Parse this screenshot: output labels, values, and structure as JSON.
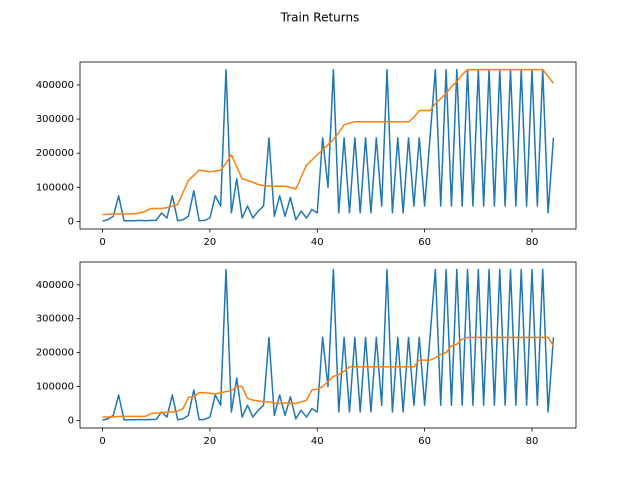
{
  "title": "Train Returns",
  "chart_data": [
    {
      "type": "line",
      "x": [
        0,
        1,
        2,
        3,
        4,
        5,
        6,
        7,
        8,
        9,
        10,
        11,
        12,
        13,
        14,
        15,
        16,
        17,
        18,
        19,
        20,
        21,
        22,
        23,
        24,
        25,
        26,
        27,
        28,
        29,
        30,
        31,
        32,
        33,
        34,
        35,
        36,
        37,
        38,
        39,
        40,
        41,
        42,
        43,
        44,
        45,
        46,
        47,
        48,
        49,
        50,
        51,
        52,
        53,
        54,
        55,
        56,
        57,
        58,
        59,
        60,
        61,
        62,
        63,
        64,
        65,
        66,
        67,
        68,
        69,
        70,
        71,
        72,
        73,
        74,
        75,
        76,
        77,
        78,
        79,
        80,
        81,
        82,
        83,
        84
      ],
      "series": [
        {
          "color": "#1f77b4",
          "values": [
            1000,
            5000,
            15000,
            75000,
            2000,
            2000,
            2000,
            3000,
            2000,
            3000,
            3000,
            25000,
            10000,
            75000,
            2000,
            5000,
            15000,
            90000,
            2000,
            3000,
            10000,
            75000,
            45000,
            445000,
            25000,
            125000,
            10000,
            45000,
            10000,
            30000,
            45000,
            245000,
            15000,
            75000,
            15000,
            70000,
            5000,
            30000,
            10000,
            35000,
            25000,
            245000,
            100000,
            445000,
            25000,
            245000,
            25000,
            245000,
            25000,
            245000,
            25000,
            245000,
            45000,
            445000,
            25000,
            245000,
            25000,
            245000,
            45000,
            245000,
            45000,
            245000,
            445000,
            45000,
            445000,
            45000,
            445000,
            45000,
            445000,
            45000,
            445000,
            45000,
            445000,
            45000,
            445000,
            45000,
            445000,
            45000,
            445000,
            45000,
            445000,
            45000,
            445000,
            25000,
            245000
          ]
        },
        {
          "color": "#ff7f0e",
          "values": [
            20000,
            21000,
            22000,
            22000,
            22000,
            22000,
            22000,
            25000,
            30000,
            38000,
            38000,
            38000,
            40000,
            45000,
            50000,
            85000,
            120000,
            135000,
            150000,
            148000,
            145000,
            148000,
            150000,
            170000,
            195000,
            160000,
            125000,
            120000,
            115000,
            108000,
            105000,
            104000,
            103000,
            103000,
            103000,
            100000,
            95000,
            130000,
            165000,
            180000,
            195000,
            210000,
            225000,
            240000,
            260000,
            283000,
            288000,
            292000,
            292000,
            292000,
            292000,
            292000,
            292000,
            292000,
            292000,
            292000,
            292000,
            292000,
            305000,
            325000,
            325000,
            325000,
            345000,
            360000,
            375000,
            395000,
            410000,
            430000,
            445000,
            445000,
            445000,
            445000,
            445000,
            445000,
            445000,
            445000,
            445000,
            445000,
            445000,
            445000,
            445000,
            445000,
            445000,
            425000,
            405000
          ]
        }
      ],
      "xlim": [
        -4.2,
        88.2
      ],
      "xticks": [
        0,
        20,
        40,
        60,
        80
      ],
      "ylim": [
        -22250,
        467250
      ],
      "yticks": [
        0,
        100000,
        200000,
        300000,
        400000
      ]
    },
    {
      "type": "line",
      "x": [
        0,
        1,
        2,
        3,
        4,
        5,
        6,
        7,
        8,
        9,
        10,
        11,
        12,
        13,
        14,
        15,
        16,
        17,
        18,
        19,
        20,
        21,
        22,
        23,
        24,
        25,
        26,
        27,
        28,
        29,
        30,
        31,
        32,
        33,
        34,
        35,
        36,
        37,
        38,
        39,
        40,
        41,
        42,
        43,
        44,
        45,
        46,
        47,
        48,
        49,
        50,
        51,
        52,
        53,
        54,
        55,
        56,
        57,
        58,
        59,
        60,
        61,
        62,
        63,
        64,
        65,
        66,
        67,
        68,
        69,
        70,
        71,
        72,
        73,
        74,
        75,
        76,
        77,
        78,
        79,
        80,
        81,
        82,
        83,
        84
      ],
      "series": [
        {
          "color": "#1f77b4",
          "values": [
            1000,
            5000,
            15000,
            75000,
            2000,
            2000,
            2000,
            3000,
            2000,
            3000,
            3000,
            25000,
            10000,
            75000,
            2000,
            5000,
            15000,
            90000,
            2000,
            3000,
            10000,
            75000,
            45000,
            445000,
            25000,
            125000,
            10000,
            45000,
            10000,
            30000,
            45000,
            245000,
            15000,
            75000,
            15000,
            70000,
            5000,
            30000,
            10000,
            35000,
            25000,
            245000,
            100000,
            445000,
            25000,
            245000,
            25000,
            245000,
            25000,
            245000,
            25000,
            245000,
            45000,
            445000,
            25000,
            245000,
            25000,
            245000,
            45000,
            245000,
            45000,
            245000,
            445000,
            45000,
            445000,
            45000,
            445000,
            45000,
            445000,
            45000,
            445000,
            45000,
            445000,
            45000,
            445000,
            45000,
            445000,
            45000,
            445000,
            45000,
            445000,
            45000,
            445000,
            25000,
            245000
          ]
        },
        {
          "color": "#ff7f0e",
          "values": [
            10000,
            10000,
            10000,
            12000,
            12000,
            12000,
            12000,
            12000,
            12000,
            20000,
            22000,
            22000,
            25000,
            25000,
            28000,
            35000,
            68000,
            70000,
            82000,
            82000,
            80000,
            78000,
            82000,
            85000,
            88000,
            100000,
            100000,
            65000,
            60000,
            58000,
            55000,
            55000,
            52000,
            50000,
            52000,
            50000,
            50000,
            55000,
            60000,
            90000,
            92000,
            100000,
            115000,
            130000,
            135000,
            145000,
            158000,
            158000,
            158000,
            158000,
            158000,
            158000,
            158000,
            158000,
            158000,
            158000,
            158000,
            158000,
            158000,
            178000,
            178000,
            178000,
            185000,
            195000,
            200000,
            220000,
            225000,
            240000,
            245000,
            245000,
            245000,
            245000,
            245000,
            245000,
            245000,
            245000,
            245000,
            245000,
            245000,
            245000,
            245000,
            245000,
            245000,
            245000,
            220000
          ]
        }
      ],
      "xlim": [
        -4.2,
        88.2
      ],
      "xticks": [
        0,
        20,
        40,
        60,
        80
      ],
      "ylim": [
        -22250,
        467250
      ],
      "yticks": [
        0,
        100000,
        200000,
        300000,
        400000
      ]
    }
  ]
}
